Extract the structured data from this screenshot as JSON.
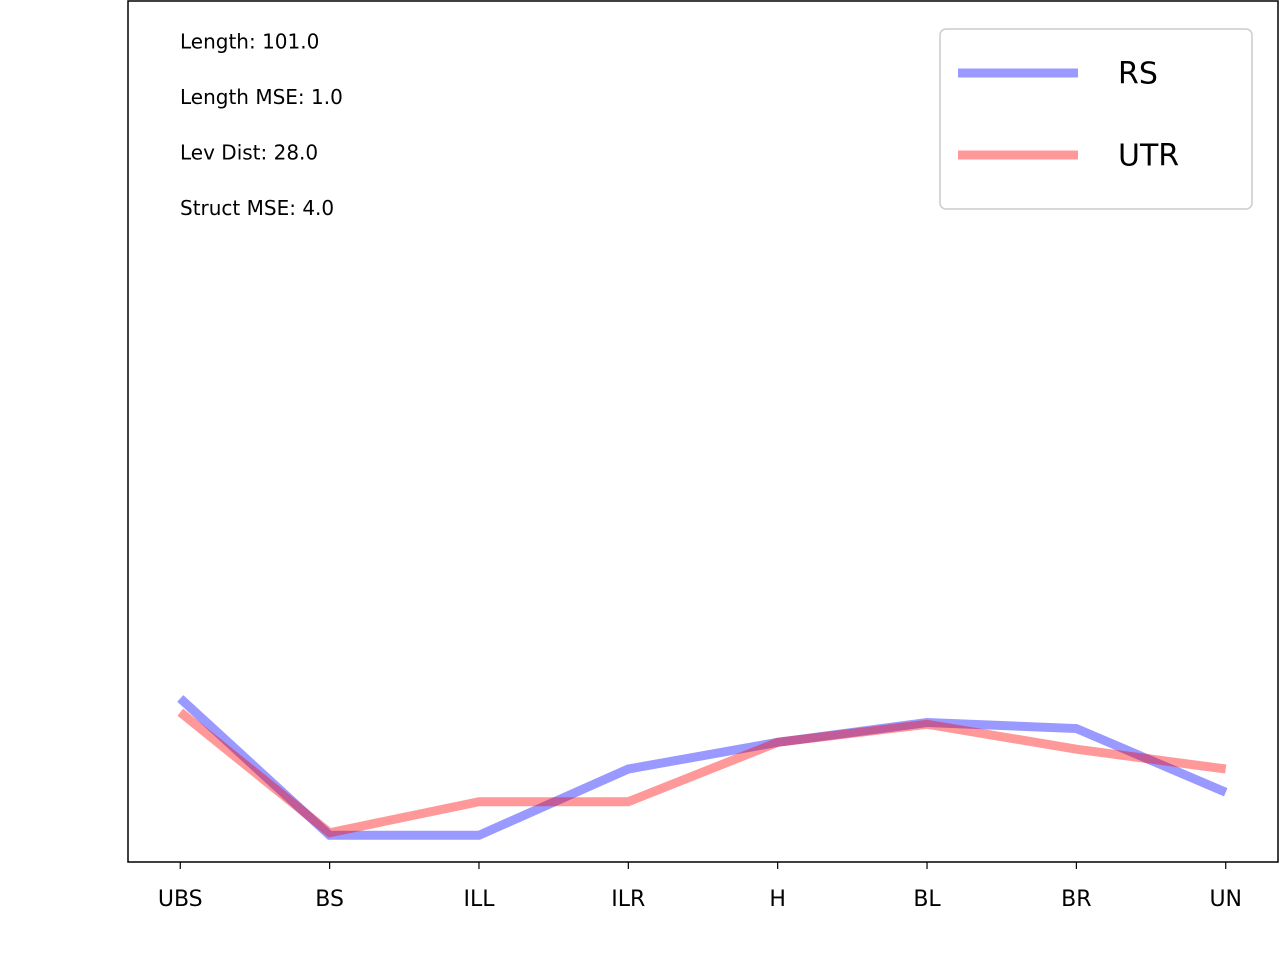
{
  "chart_data": {
    "type": "line",
    "annotations": [
      "Length: 101.0",
      "Length MSE: 1.0",
      "Lev Dist: 28.0",
      "Struct MSE: 4.0"
    ],
    "categories": [
      "UBS",
      "BS",
      "ILL",
      "ILR",
      "H",
      "BL",
      "BR",
      "UN"
    ],
    "series": [
      {
        "name": "RS",
        "color": "#0000ff",
        "values": [
          19.0,
          3.1,
          3.1,
          10.8,
          13.9,
          16.2,
          15.5,
          8.1
        ]
      },
      {
        "name": "UTR",
        "color": "#ff0000",
        "values": [
          17.4,
          3.4,
          7.0,
          7.0,
          13.9,
          16.0,
          13.1,
          10.8
        ]
      }
    ],
    "ylim": [
      0,
      100
    ],
    "legend": "upper right"
  }
}
